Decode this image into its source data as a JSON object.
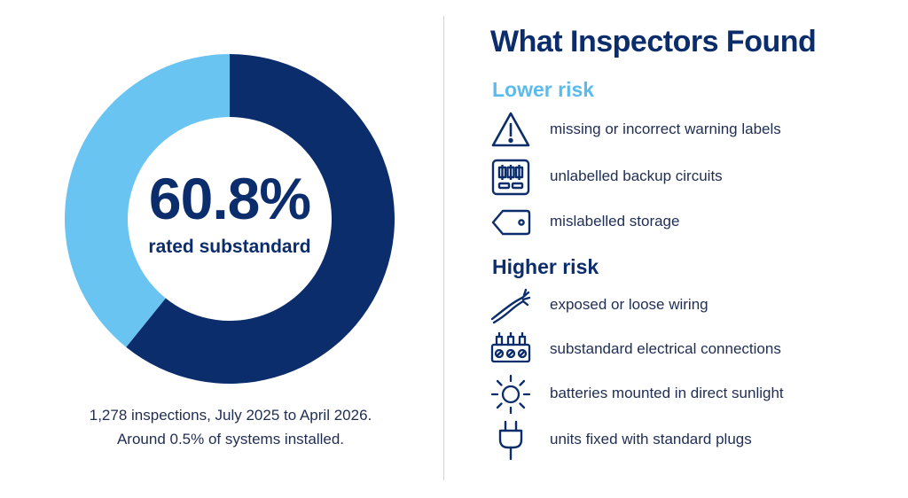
{
  "chart_data": {
    "type": "pie",
    "style": "donut",
    "slices": [
      {
        "label": "rated substandard",
        "value": 60.8,
        "color": "#0b2d6b"
      },
      {
        "label": "",
        "value": 39.2,
        "color": "#69c4f1"
      }
    ],
    "center_value": "60.8%",
    "center_label": "rated substandard"
  },
  "footnote": {
    "line1": "1,278 inspections, July 2025 to April 2026.",
    "line2": "Around 0.5% of systems installed."
  },
  "findings": {
    "title": "What Inspectors Found",
    "lower_risk": {
      "heading": "Lower risk",
      "color": "#5bbbec",
      "items": [
        {
          "label": "missing or incorrect warning labels",
          "icon": "warning-triangle-icon"
        },
        {
          "label": "unlabelled backup circuits",
          "icon": "circuit-panel-icon"
        },
        {
          "label": "mislabelled storage",
          "icon": "tag-icon"
        }
      ]
    },
    "higher_risk": {
      "heading": "Higher risk",
      "color": "#0b2d6b",
      "items": [
        {
          "label": "exposed or loose wiring",
          "icon": "loose-wire-icon"
        },
        {
          "label": "substandard electrical connections",
          "icon": "terminal-block-icon"
        },
        {
          "label": "batteries mounted in direct sunlight",
          "icon": "sun-icon"
        },
        {
          "label": "units fixed with standard plugs",
          "icon": "plug-icon"
        }
      ]
    }
  }
}
